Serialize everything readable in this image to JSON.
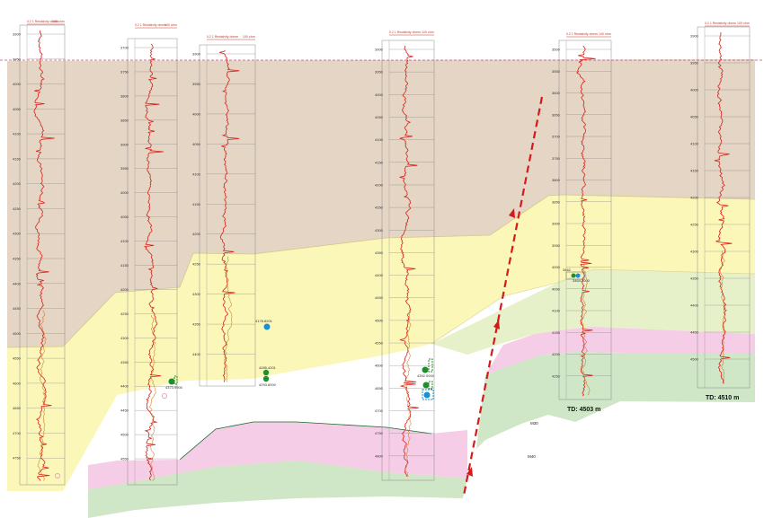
{
  "header": {
    "scale_min": "0.2",
    "scale_mid": "1",
    "scale_label": "Resistivity",
    "scale_unit": "ohmm",
    "scale_max": "100 ohm"
  },
  "well_td": [
    {
      "id": "td-well5",
      "text": "TD: 4503 m"
    },
    {
      "id": "td-well6",
      "text": "TD: 4510 m"
    }
  ],
  "markers": {
    "m30": "M30",
    "m40": "M40"
  },
  "samples": [
    {
      "id": "s2",
      "label": "4373.9900",
      "color": "#1f8f2e"
    },
    {
      "id": "s3a",
      "label": "4178.8201",
      "color": "#1b8fd2"
    },
    {
      "id": "s3b",
      "label": "4285.4201",
      "color": "#1f8f2e"
    },
    {
      "id": "s3c",
      "label": "4293.8000",
      "color": "#1f8f2e"
    },
    {
      "id": "s4",
      "label": "4392.0000",
      "color": "#1f8f2e"
    },
    {
      "id": "s5",
      "label": "3462",
      "color": "#1f8f2e"
    },
    {
      "id": "s5b",
      "label": "3464.2000",
      "color": "#1b8fd2"
    }
  ],
  "depth_ticks": {
    "w1": [
      "3900",
      "3950",
      "4000",
      "4050",
      "4100",
      "4150",
      "4200",
      "4250",
      "4300",
      "4350",
      "4400",
      "4450",
      "4500",
      "4550",
      "4600",
      "4650",
      "4700",
      "4750"
    ],
    "w2": [
      "3700",
      "3750",
      "3800",
      "3850",
      "3900",
      "3950",
      "4000",
      "4050",
      "4100",
      "4150",
      "4200",
      "4250",
      "4300",
      "4350",
      "4400",
      "4450",
      "4500",
      "4550"
    ],
    "w3": [
      "3900",
      "3950",
      "4000",
      "4050",
      "4100",
      "4150",
      "4200",
      "4250",
      "4300",
      "4350",
      "4400"
    ],
    "w4": [
      "3900",
      "3950",
      "4000",
      "4050",
      "4100",
      "4150",
      "4200",
      "4250",
      "4300",
      "4350",
      "4400",
      "4450",
      "4500",
      "4550",
      "4600",
      "4650",
      "4700",
      "4750",
      "4800"
    ],
    "w5": [
      "3500",
      "3550",
      "3600",
      "3650",
      "3700",
      "3750",
      "3800",
      "3850",
      "3900",
      "3950",
      "4000",
      "4050",
      "4100",
      "4150",
      "4200",
      "4250"
    ],
    "w6": [
      "3900",
      "3950",
      "4000",
      "4050",
      "4100",
      "4150",
      "4200",
      "4250",
      "4300",
      "4350",
      "4400",
      "4450",
      "4500"
    ]
  },
  "colors": {
    "shale": "#e4d5c4",
    "yellow": "#fbf7b8",
    "pale_green": "#e6f0c8",
    "pink": "#f6cde6",
    "green": "#cfe6c7",
    "log_red": "#d8221b",
    "log_orange": "#c5751e",
    "log_magenta": "#b62a86",
    "fault": "#d41a1a"
  }
}
